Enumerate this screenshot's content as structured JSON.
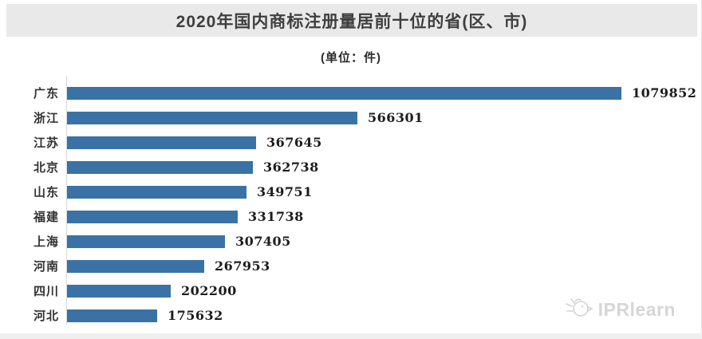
{
  "page": {
    "title": "2020年国内商标注册量居前十位的省(区、市)",
    "subtitle": "(单位：件)",
    "watermark_text": "IPRlearn",
    "watermark_icon": "rooster-logo-icon"
  },
  "colors": {
    "bar_fill": "#3a72a5",
    "title_band_bg": "#e9e9e9",
    "title_text": "#3f3f3f",
    "axis_line": "#d9d9d9",
    "value_text": "#1d1d1d",
    "category_text": "#333333",
    "watermark_text": "#d6d6d6"
  },
  "chart_data": {
    "type": "bar",
    "orientation": "horizontal",
    "title": "2020年国内商标注册量居前十位的省(区、市)",
    "unit_label": "(单位：件)",
    "categories": [
      "广东",
      "浙江",
      "江苏",
      "北京",
      "山东",
      "福建",
      "上海",
      "河南",
      "四川",
      "河北"
    ],
    "values": [
      1079852,
      566301,
      367645,
      362738,
      349751,
      331738,
      307405,
      267953,
      202200,
      175632
    ],
    "xlim": [
      0,
      1100000
    ],
    "grid": false,
    "legend": false,
    "data_labels": true,
    "ylabel": "",
    "xlabel": ""
  }
}
